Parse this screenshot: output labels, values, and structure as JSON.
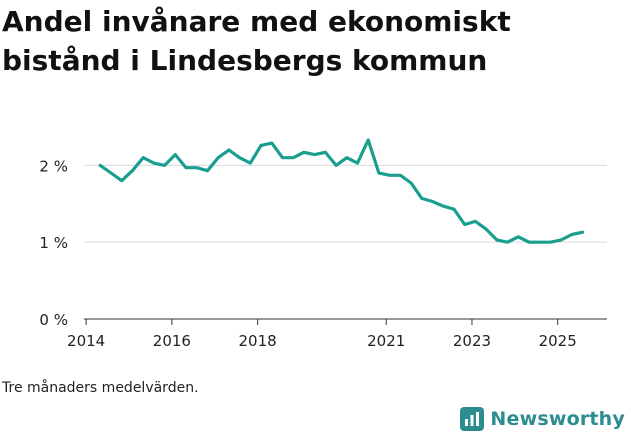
{
  "title": "Andel invånare med ekonomiskt bistånd i Lindesbergs kommun",
  "caption": "Tre månaders medelvärden.",
  "brand": {
    "name": "Newsworthy",
    "icon": "newsworthy-logo-icon",
    "color": "#2c8c8f"
  },
  "colors": {
    "line": "#1a9e90",
    "grid": "#d9d9d9",
    "axis": "#333333",
    "text": "#222222"
  },
  "chart_data": {
    "type": "line",
    "title": "Andel invånare med ekonomiskt bistånd i Lindesbergs kommun",
    "xlabel": "",
    "ylabel": "",
    "xlim": [
      2013.95,
      2026.15
    ],
    "ylim": [
      0,
      2.2
    ],
    "x_ticks": [
      2014,
      2016,
      2018,
      2021,
      2023,
      2025
    ],
    "x_tick_labels": [
      "2014",
      "2016",
      "2018",
      "2021",
      "2023",
      "2025"
    ],
    "y_ticks": [
      0,
      1,
      2
    ],
    "y_tick_labels": [
      "0 %",
      "1 %",
      "2 %"
    ],
    "grid": true,
    "series": [
      {
        "name": "Andel invånare med ekonomiskt bistånd",
        "x": [
          2014.33,
          2014.58,
          2014.83,
          2015.08,
          2015.33,
          2015.58,
          2015.83,
          2016.08,
          2016.33,
          2016.58,
          2016.83,
          2017.08,
          2017.33,
          2017.58,
          2017.83,
          2018.08,
          2018.33,
          2018.58,
          2018.83,
          2019.08,
          2019.33,
          2019.58,
          2019.83,
          2020.08,
          2020.33,
          2020.58,
          2020.83,
          2021.08,
          2021.33,
          2021.58,
          2021.83,
          2022.08,
          2022.33,
          2022.58,
          2022.83,
          2023.08,
          2023.33,
          2023.58,
          2023.83,
          2024.08,
          2024.33,
          2024.58,
          2024.83,
          2025.08,
          2025.33,
          2025.58
        ],
        "values": [
          2.0,
          1.9,
          1.8,
          1.93,
          2.1,
          2.03,
          2.0,
          2.14,
          1.97,
          1.97,
          1.93,
          2.1,
          2.2,
          2.1,
          2.03,
          2.26,
          2.29,
          2.1,
          2.1,
          2.17,
          2.14,
          2.17,
          2.0,
          2.1,
          2.03,
          2.33,
          1.9,
          1.87,
          1.87,
          1.77,
          1.57,
          1.53,
          1.47,
          1.43,
          1.23,
          1.27,
          1.17,
          1.03,
          1.0,
          1.07,
          1.0,
          1.0,
          1.0,
          1.03,
          1.1,
          1.13
        ]
      }
    ]
  }
}
